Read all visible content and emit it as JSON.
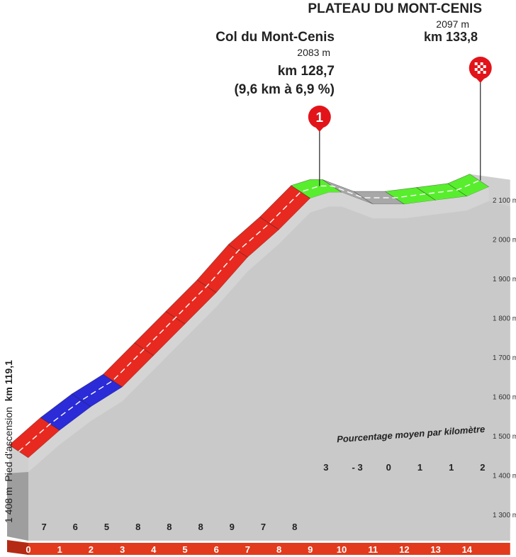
{
  "chart_data": {
    "type": "area",
    "title": "PLATEAU DU MONT-CENIS",
    "subtitle_alt": "2097 m",
    "subtitle_km": "km 133,8",
    "col": {
      "name": "Col du Mont-Cenis",
      "alt": "2083 m",
      "km": "km 128,7",
      "detail": "(9,6 km à 6,9 %)",
      "marker": "1"
    },
    "finish_marker_icon": "checkered-flag-icon",
    "start": {
      "alt_label": "1 408 m",
      "text": "Pied d'ascension",
      "km_label": "km 119,1"
    },
    "legend_note": "Pourcentage moyen par kilomètre",
    "xlabel": "",
    "ylabel": "",
    "y_ticks": [
      "1 300 m",
      "1 400 m",
      "1 500 m",
      "1 600 m",
      "1 700 m",
      "1 800 m",
      "1 900 m",
      "2 000 m",
      "2 100 m"
    ],
    "y_tick_values": [
      1300,
      1400,
      1500,
      1600,
      1700,
      1800,
      1900,
      2000,
      2100
    ],
    "ylim": [
      1300,
      2100
    ],
    "x_ticks": [
      "0",
      "1",
      "2",
      "3",
      "4",
      "5",
      "6",
      "7",
      "8",
      "9",
      "10",
      "11",
      "12",
      "13",
      "14"
    ],
    "x": [
      0,
      1,
      2,
      3,
      4,
      5,
      6,
      7,
      8,
      9,
      9.6,
      10,
      11,
      12,
      13,
      14,
      14.7
    ],
    "elevation": [
      1408,
      1478,
      1538,
      1588,
      1668,
      1748,
      1828,
      1918,
      1988,
      2068,
      2083,
      2083,
      2053,
      2053,
      2063,
      2073,
      2097
    ],
    "segment_gradients": [
      "7",
      "6",
      "5",
      "8",
      "8",
      "8",
      "9",
      "7",
      "8",
      "3",
      "- 3",
      "0",
      "1",
      "1",
      "2"
    ],
    "colors": {
      "steep": "#e8291f",
      "medium": "#2b2bd8",
      "easy": "#58ee2e",
      "flat": "#a8a8a8",
      "marker": "#e2141a",
      "axis_band": "#e23a1c"
    }
  }
}
